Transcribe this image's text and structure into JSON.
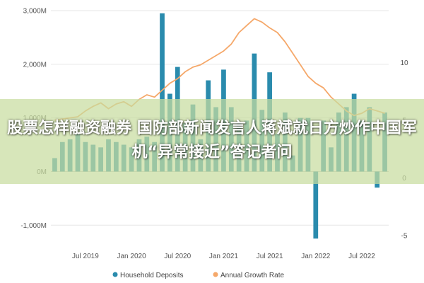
{
  "chart_data": {
    "type": "bar",
    "x": [
      "2019-03",
      "2019-04",
      "2019-05",
      "2019-06",
      "2019-07",
      "2019-08",
      "2019-09",
      "2019-10",
      "2019-11",
      "2019-12",
      "2020-01",
      "2020-02",
      "2020-03",
      "2020-04",
      "2020-05",
      "2020-06",
      "2020-07",
      "2020-08",
      "2020-09",
      "2020-10",
      "2020-11",
      "2020-12",
      "2021-01",
      "2021-02",
      "2021-03",
      "2021-04",
      "2021-05",
      "2021-06",
      "2021-07",
      "2021-08",
      "2021-09",
      "2021-10",
      "2021-11",
      "2021-12",
      "2022-01",
      "2022-02",
      "2022-03",
      "2022-04",
      "2022-05",
      "2022-06",
      "2022-07",
      "2022-08",
      "2022-09",
      "2022-10"
    ],
    "series": [
      {
        "name": "Household Deposits",
        "axis": "left",
        "color": "#2a8bad",
        "values": [
          250,
          550,
          600,
          700,
          550,
          500,
          450,
          600,
          550,
          500,
          450,
          600,
          650,
          550,
          2950,
          1450,
          1950,
          900,
          1250,
          600,
          1700,
          1200,
          1900,
          1200,
          900,
          950,
          2200,
          1150,
          1850,
          700,
          1100,
          300,
          1000,
          1000,
          -1250,
          950,
          450,
          1100,
          1200,
          1450,
          950,
          1200,
          -300,
          1100
        ]
      },
      {
        "name": "Annual Growth Rate",
        "axis": "right",
        "color": "#f5a86a",
        "type": "line",
        "values": [
          5.0,
          5.1,
          5.2,
          5.3,
          5.8,
          6.2,
          6.5,
          6.0,
          6.4,
          6.6,
          6.2,
          6.8,
          7.2,
          7.0,
          7.6,
          8.2,
          8.6,
          9.2,
          9.6,
          9.8,
          10.2,
          10.6,
          11.0,
          11.6,
          12.6,
          13.2,
          13.8,
          13.5,
          13.0,
          12.6,
          11.8,
          10.8,
          9.8,
          8.8,
          8.2,
          7.8,
          7.0,
          6.4,
          5.8,
          5.4,
          5.6,
          6.0,
          5.8,
          5.6
        ]
      }
    ],
    "y_left": {
      "ylim": [
        -1300,
        3000
      ],
      "ticks": [
        -1000,
        0,
        1000,
        2000,
        3000
      ],
      "tick_labels": [
        "-1,000M",
        "0M",
        "1,000M",
        "2,000M",
        "3,000M"
      ]
    },
    "y_right": {
      "ylim": [
        -5.5,
        14.5
      ],
      "ticks": [
        -5,
        0,
        5,
        10
      ],
      "tick_labels": [
        "-5",
        "0",
        "5",
        "10"
      ]
    },
    "x_ticks": [
      {
        "x": "2019-07",
        "label": "Jul 2019"
      },
      {
        "x": "2020-01",
        "label": "Jan 2020"
      },
      {
        "x": "2020-07",
        "label": "Jul 2020"
      },
      {
        "x": "2021-01",
        "label": "Jan 2021"
      },
      {
        "x": "2021-07",
        "label": "Jul 2021"
      },
      {
        "x": "2022-01",
        "label": "Jan 2022"
      },
      {
        "x": "2022-07",
        "label": "Jul 2022"
      }
    ],
    "grid": true,
    "legend": "bottom",
    "xlabel": "",
    "ylabel": "",
    "title": ""
  },
  "overlay": {
    "headline": "股票怎样融资融券 国防部新闻发言人蒋斌就日方炒作中国军机“异常接近”答记者问",
    "background_color": "#c8dca0",
    "text_color": "#ffffff"
  }
}
